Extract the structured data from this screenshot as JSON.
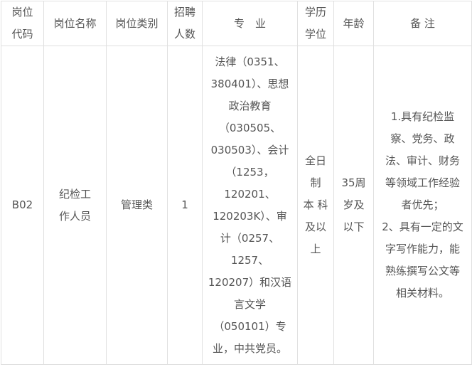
{
  "headers": [
    "岗位\n代码",
    "岗位名称",
    "岗位类别",
    "招聘\n人数",
    "专　业",
    "学历\n学位",
    "年龄",
    "备 注"
  ],
  "row": {
    "code": "B02",
    "name": "纪检工\n作人员",
    "category": "管理类",
    "count": "1",
    "major": "法律（0351、\n380401）、思想\n政治教育\n（030505、\n030503）、会计\n（1253，\n120201、\n120203K）、审\n计（0257、\n1257、\n120207）和汉语\n言文学\n（050101）专\n业，中共党员。",
    "education": "全日\n制\n本 科\n及以\n上",
    "age": "35周\n岁及\n以下",
    "remarks": "1.具有纪检监\n察、党务、政\n法、审计、财务\n等领域工作经验\n者优先；\n2、具有一定的文\n字写作能力，能\n熟练撰写公文等\n相关材料。"
  }
}
